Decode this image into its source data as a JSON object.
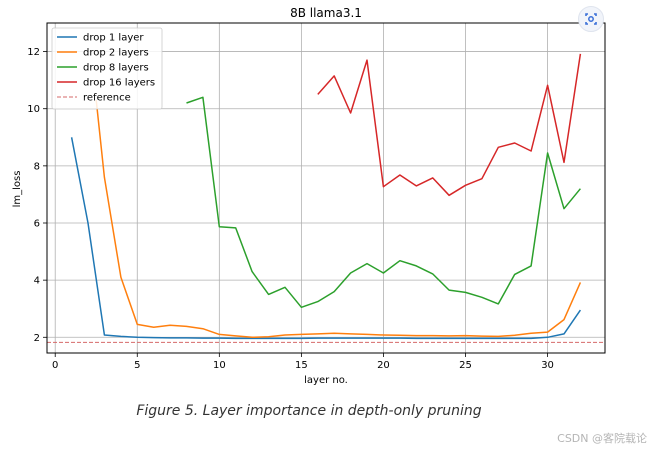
{
  "chart_data": {
    "type": "line",
    "title": "8B llama3.1",
    "xlabel": "layer no.",
    "ylabel": "lm_loss",
    "xlim": [
      -0.5,
      33.5
    ],
    "ylim": [
      1.45,
      13.0
    ],
    "xticks": [
      0,
      5,
      10,
      15,
      20,
      25,
      30
    ],
    "yticks": [
      2,
      4,
      6,
      8,
      10,
      12
    ],
    "grid": true,
    "legend_position": "top-left",
    "series": [
      {
        "name": "drop 1 layer",
        "color": "#1f77b4",
        "x": [
          1,
          2,
          3,
          4,
          5,
          6,
          7,
          8,
          9,
          10,
          11,
          12,
          13,
          14,
          15,
          16,
          17,
          18,
          19,
          20,
          21,
          22,
          23,
          24,
          25,
          26,
          27,
          28,
          29,
          30,
          31,
          32
        ],
        "values": [
          9.0,
          6.0,
          2.08,
          2.03,
          2.0,
          1.99,
          1.98,
          1.98,
          1.97,
          1.97,
          1.96,
          1.96,
          1.96,
          1.96,
          1.96,
          1.97,
          1.97,
          1.97,
          1.97,
          1.97,
          1.97,
          1.96,
          1.96,
          1.96,
          1.96,
          1.96,
          1.96,
          1.96,
          1.96,
          2.0,
          2.12,
          2.95
        ]
      },
      {
        "name": "drop 2 layers",
        "color": "#ff7f0e",
        "x": [
          2.5,
          3,
          4,
          5,
          6,
          7,
          8,
          9,
          10,
          11,
          12,
          13,
          14,
          15,
          16,
          17,
          18,
          19,
          20,
          21,
          22,
          23,
          24,
          25,
          26,
          27,
          28,
          29,
          30,
          31,
          32
        ],
        "values": [
          10.3,
          7.6,
          4.1,
          2.45,
          2.35,
          2.42,
          2.38,
          2.3,
          2.1,
          2.05,
          2.0,
          2.02,
          2.08,
          2.1,
          2.12,
          2.14,
          2.12,
          2.1,
          2.08,
          2.07,
          2.06,
          2.06,
          2.05,
          2.06,
          2.04,
          2.03,
          2.07,
          2.14,
          2.18,
          2.62,
          3.92
        ]
      },
      {
        "name": "drop 8 layers",
        "color": "#2ca02c",
        "x": [
          8,
          9,
          10,
          11,
          12,
          13,
          14,
          15,
          16,
          17,
          18,
          19,
          20,
          21,
          22,
          23,
          24,
          25,
          26,
          27,
          28,
          29,
          30,
          31,
          32
        ],
        "values": [
          10.2,
          10.4,
          5.87,
          5.83,
          4.3,
          3.5,
          3.75,
          3.05,
          3.25,
          3.6,
          4.25,
          4.58,
          4.25,
          4.68,
          4.5,
          4.22,
          3.65,
          3.57,
          3.4,
          3.17,
          4.2,
          4.5,
          8.45,
          6.5,
          7.2
        ]
      },
      {
        "name": "drop 16 layers",
        "color": "#d62728",
        "x": [
          16,
          17,
          18,
          19,
          20,
          21,
          22,
          23,
          24,
          25,
          26,
          27,
          28,
          29,
          30,
          31,
          32
        ],
        "values": [
          10.5,
          11.15,
          9.85,
          11.7,
          7.27,
          7.68,
          7.3,
          7.58,
          6.97,
          7.32,
          7.55,
          8.65,
          8.8,
          8.52,
          10.82,
          8.12,
          11.92
        ]
      }
    ],
    "reference": {
      "name": "reference",
      "color": "#d66a6a",
      "value": 1.82
    }
  },
  "caption": "Figure 5. Layer importance in depth-only pruning",
  "watermark": "CSDN @客院载论",
  "corner_icon": "screen-capture-icon"
}
